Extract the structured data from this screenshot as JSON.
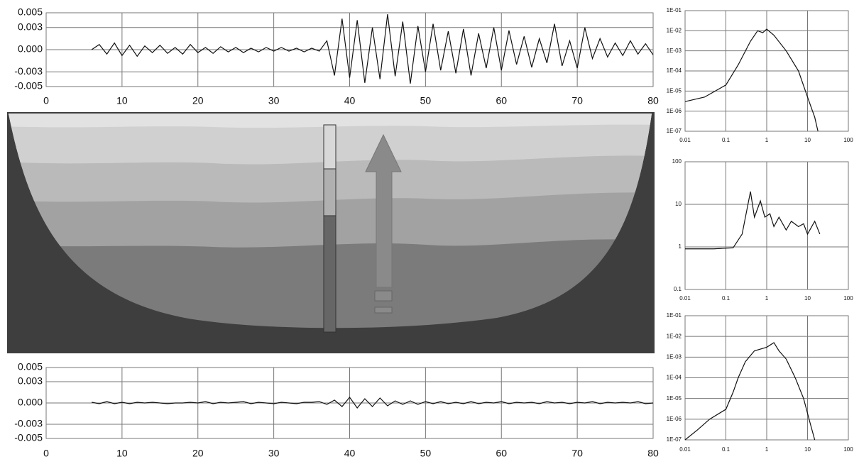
{
  "chart_data": [
    {
      "type": "line",
      "color": "#111111",
      "grid": true,
      "xlim": [
        0,
        80
      ],
      "xticks": [
        0,
        10,
        20,
        30,
        40,
        50,
        60,
        70,
        80
      ],
      "ylim": [
        -0.005,
        0.005
      ],
      "yticks": [
        {
          "value": 0.005,
          "label": "0.005"
        },
        {
          "value": 0.003,
          "label": "0.003"
        },
        {
          "value": 0,
          "label": "0.000"
        },
        {
          "value": -0.003,
          "label": "-0.003"
        },
        {
          "value": -0.005,
          "label": "-0.005"
        }
      ],
      "x": [
        6,
        7,
        8,
        9,
        10,
        11,
        12,
        13,
        14,
        15,
        16,
        17,
        18,
        19,
        20,
        21,
        22,
        23,
        24,
        25,
        26,
        27,
        28,
        29,
        30,
        31,
        32,
        33,
        34,
        35,
        36,
        37,
        38,
        39,
        40,
        41,
        42,
        43,
        44,
        45,
        46,
        47,
        48,
        49,
        50,
        51,
        52,
        53,
        54,
        55,
        56,
        57,
        58,
        59,
        60,
        61,
        62,
        63,
        64,
        65,
        66,
        67,
        68,
        69,
        70,
        71,
        72,
        73,
        74,
        75,
        76,
        77,
        78,
        79,
        80
      ],
      "values": [
        0,
        0.0007,
        -0.0006,
        0.0009,
        -0.0008,
        0.0006,
        -0.0009,
        0.0005,
        -0.0004,
        0.0006,
        -0.0005,
        0.0003,
        -0.0006,
        0.0007,
        -0.0004,
        0.0003,
        -0.0005,
        0.0004,
        -0.0003,
        0.0003,
        -0.0004,
        0.0002,
        -0.0003,
        0.0003,
        -0.0002,
        0.0003,
        -0.0002,
        0.0002,
        -0.0003,
        0.0002,
        -0.0002,
        0.0012,
        -0.0035,
        0.0042,
        -0.0038,
        0.004,
        -0.0045,
        0.003,
        -0.004,
        0.0048,
        -0.0036,
        0.0038,
        -0.0046,
        0.0032,
        -0.003,
        0.0035,
        -0.0028,
        0.0025,
        -0.0032,
        0.0028,
        -0.0035,
        0.0022,
        -0.0025,
        0.003,
        -0.0028,
        0.0026,
        -0.002,
        0.0018,
        -0.0024,
        0.0015,
        -0.0018,
        0.0035,
        -0.0022,
        0.0012,
        -0.0025,
        0.003,
        -0.0012,
        0.0015,
        -0.001,
        0.0009,
        -0.0008,
        0.0012,
        -0.0006,
        0.0008,
        -0.0007
      ]
    },
    {
      "type": "line",
      "color": "#111111",
      "grid": true,
      "xlim": [
        0,
        80
      ],
      "xticks": [
        0,
        10,
        20,
        30,
        40,
        50,
        60,
        70,
        80
      ],
      "ylim": [
        -0.005,
        0.005
      ],
      "yticks": [
        {
          "value": 0.005,
          "label": "0.005"
        },
        {
          "value": 0.003,
          "label": "0.003"
        },
        {
          "value": 0,
          "label": "0.000"
        },
        {
          "value": -0.003,
          "label": "-0.003"
        },
        {
          "value": -0.005,
          "label": "-0.005"
        }
      ],
      "x": [
        6,
        7,
        8,
        9,
        10,
        11,
        12,
        13,
        14,
        15,
        16,
        17,
        18,
        19,
        20,
        21,
        22,
        23,
        24,
        25,
        26,
        27,
        28,
        29,
        30,
        31,
        32,
        33,
        34,
        35,
        36,
        37,
        38,
        39,
        40,
        41,
        42,
        43,
        44,
        45,
        46,
        47,
        48,
        49,
        50,
        51,
        52,
        53,
        54,
        55,
        56,
        57,
        58,
        59,
        60,
        61,
        62,
        63,
        64,
        65,
        66,
        67,
        68,
        69,
        70,
        71,
        72,
        73,
        74,
        75,
        76,
        77,
        78,
        79,
        80
      ],
      "values": [
        0.0001,
        -0.0001,
        0.0002,
        -0.0001,
        0.0001,
        -0.0001,
        0.0001,
        0,
        0.0001,
        0,
        -0.0001,
        0,
        0,
        0.0001,
        0,
        0.0002,
        -0.0001,
        0.0001,
        0,
        0.0001,
        0.0002,
        -0.0001,
        0.0001,
        0,
        -0.0001,
        0.0001,
        0,
        -0.0001,
        0.0001,
        0.0001,
        0.0002,
        -0.0002,
        0.0004,
        -0.0005,
        0.0008,
        -0.0007,
        0.0006,
        -0.0005,
        0.0007,
        -0.0004,
        0.0003,
        -0.0002,
        0.0003,
        -0.0002,
        0.0002,
        -0.0001,
        0.0002,
        -0.0001,
        0.0001,
        -0.0001,
        0.0002,
        -0.0001,
        0.0001,
        0,
        0.0002,
        -0.0001,
        0.0001,
        0,
        0.0001,
        -0.0001,
        0.0002,
        0,
        0.0001,
        -0.0001,
        0.0001,
        0,
        0.0002,
        -0.0001,
        0.0001,
        0,
        0.0001,
        0,
        0.0002,
        -0.0001,
        0
      ]
    },
    {
      "type": "line",
      "color": "#111111",
      "grid": true,
      "log_x": true,
      "log_y": true,
      "xlim": [
        0.01,
        100
      ],
      "xticks": [
        0.01,
        0.1,
        1,
        10,
        100
      ],
      "ylim": [
        1e-07,
        0.1
      ],
      "yticks": [
        {
          "value": 0.1,
          "label": "1E-01"
        },
        {
          "value": 0.01,
          "label": "1E-02"
        },
        {
          "value": 0.001,
          "label": "1E-03"
        },
        {
          "value": 0.0001,
          "label": "1E-04"
        },
        {
          "value": 1e-05,
          "label": "1E-05"
        },
        {
          "value": 1e-06,
          "label": "1E-06"
        },
        {
          "value": 1e-07,
          "label": "1E-07"
        }
      ],
      "x": [
        0.01,
        0.03,
        0.1,
        0.2,
        0.4,
        0.6,
        0.8,
        1,
        1.5,
        3,
        6,
        10,
        15,
        18
      ],
      "values": [
        3e-06,
        5e-06,
        2e-05,
        0.0002,
        0.003,
        0.01,
        0.008,
        0.012,
        0.006,
        0.001,
        0.0001,
        5e-06,
        5e-07,
        1e-07
      ]
    },
    {
      "type": "line",
      "color": "#111111",
      "grid": true,
      "log_x": true,
      "log_y": true,
      "xlim": [
        0.01,
        100
      ],
      "xticks": [
        0.01,
        0.1,
        1,
        10,
        100
      ],
      "ylim": [
        0.1,
        100
      ],
      "yticks": [
        100,
        10,
        1,
        0.1
      ],
      "x": [
        0.01,
        0.05,
        0.15,
        0.25,
        0.4,
        0.5,
        0.7,
        0.9,
        1.2,
        1.5,
        2,
        3,
        4,
        6,
        8,
        10,
        15,
        20
      ],
      "values": [
        0.9,
        0.9,
        0.95,
        2,
        20,
        5,
        12,
        5,
        6,
        3,
        5,
        2.5,
        4,
        3,
        3.5,
        2,
        4,
        2
      ]
    },
    {
      "type": "line",
      "color": "#111111",
      "grid": true,
      "log_x": true,
      "log_y": true,
      "xlim": [
        0.01,
        100
      ],
      "xticks": [
        0.01,
        0.1,
        1,
        10,
        100
      ],
      "ylim": [
        1e-07,
        0.1
      ],
      "yticks": [
        {
          "value": 0.1,
          "label": "1E-01"
        },
        {
          "value": 0.01,
          "label": "1E-02"
        },
        {
          "value": 0.001,
          "label": "1E-03"
        },
        {
          "value": 0.0001,
          "label": "1E-04"
        },
        {
          "value": 1e-05,
          "label": "1E-05"
        },
        {
          "value": 1e-06,
          "label": "1E-06"
        },
        {
          "value": 1e-07,
          "label": "1E-07"
        }
      ],
      "x": [
        0.01,
        0.02,
        0.04,
        0.1,
        0.15,
        0.2,
        0.3,
        0.5,
        1,
        1.5,
        2,
        3,
        5,
        8,
        12,
        15
      ],
      "values": [
        1e-07,
        3e-07,
        1e-06,
        3e-06,
        2e-05,
        0.0001,
        0.0006,
        0.002,
        0.003,
        0.005,
        0.002,
        0.0008,
        0.0001,
        1e-05,
        5e-07,
        1e-07
      ]
    }
  ]
}
